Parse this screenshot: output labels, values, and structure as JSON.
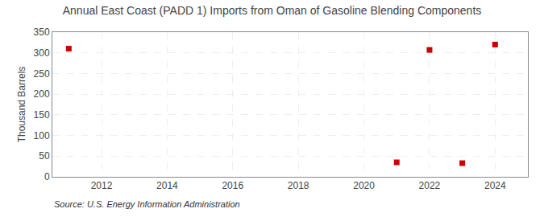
{
  "chart_data": {
    "type": "scatter",
    "title": "Annual East Coast (PADD 1) Imports from Oman of Gasoline Blending Components",
    "ylabel": "Thousand Barrels",
    "annotations": [
      "Source: U.S. Energy Information Administration"
    ],
    "x": [
      2011,
      2021,
      2022,
      2023,
      2024
    ],
    "values": [
      310,
      35,
      307,
      33,
      320
    ],
    "color": "#cc0000",
    "marker": "square",
    "xlim": [
      2010.5,
      2025
    ],
    "xticks": [
      2012,
      2014,
      2016,
      2018,
      2020,
      2022,
      2024
    ],
    "ylim": [
      0,
      350
    ],
    "yticks": [
      0,
      50,
      100,
      150,
      200,
      250,
      300,
      350
    ],
    "grid": true
  }
}
